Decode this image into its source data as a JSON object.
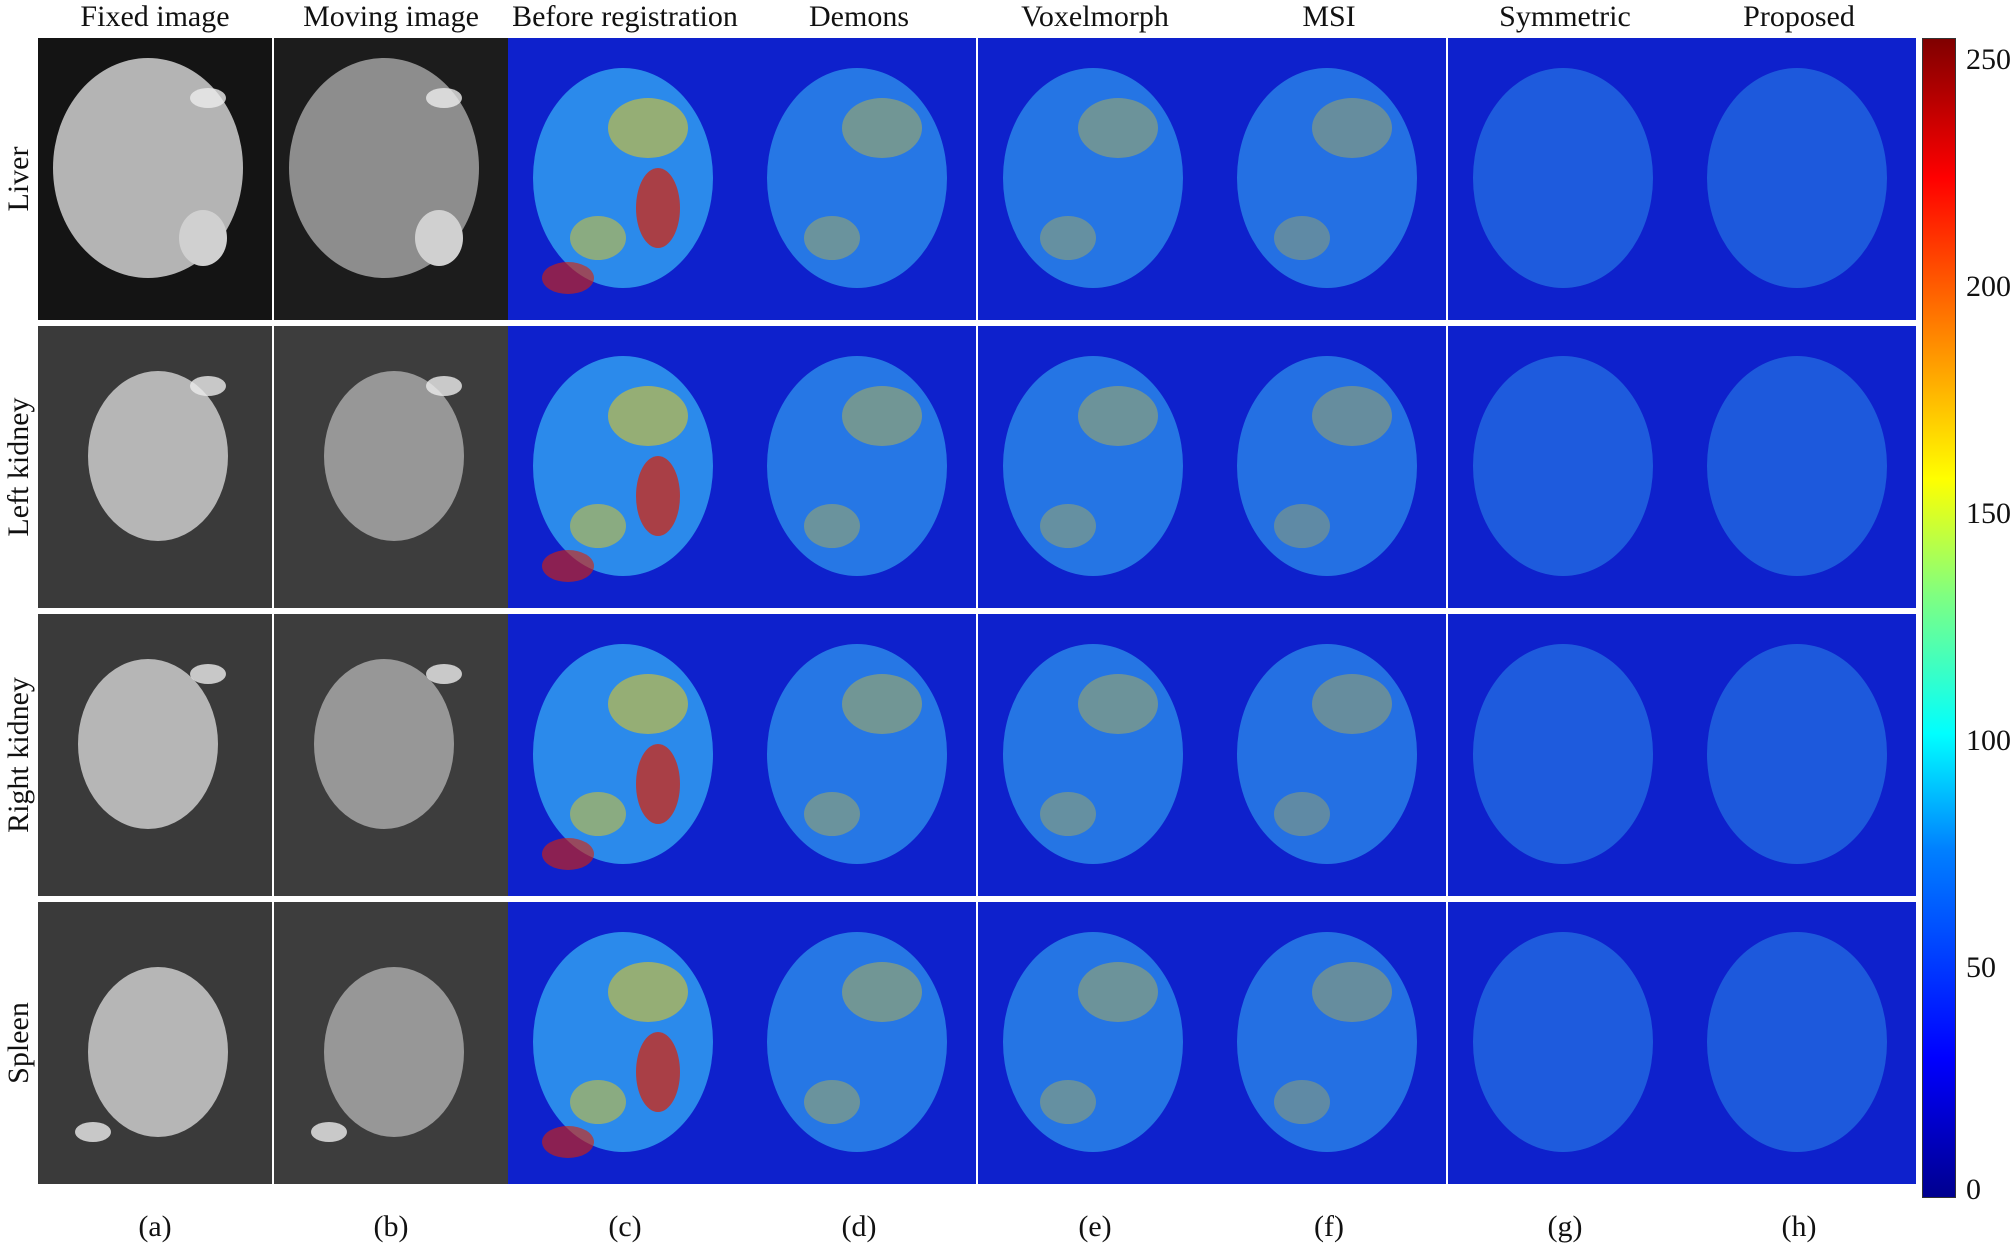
{
  "columns": [
    "Fixed image",
    "Moving image",
    "Before registration",
    "Demons",
    "Voxelmorph",
    "MSI",
    "Symmetric",
    "Proposed"
  ],
  "rows": [
    "Liver",
    "Left kidney",
    "Right kidney",
    "Spleen"
  ],
  "captions": [
    "(a)",
    "(b)",
    "(c)",
    "(d)",
    "(e)",
    "(f)",
    "(g)",
    "(h)"
  ],
  "colorbar": {
    "ticks": [
      "250",
      "200",
      "150",
      "100",
      "50",
      "0"
    ],
    "range": [
      0,
      255
    ],
    "colors": [
      "#00008f",
      "#0000ff",
      "#00ffff",
      "#ffff00",
      "#ff0000",
      "#800000"
    ]
  },
  "panel_style": {
    "ct_background": "#1a1a1a",
    "ct_organ": "#bdbdbd",
    "diff_background": "#00008f",
    "diff_low": "#1a3cff",
    "diff_mid": "#3fd0ff",
    "diff_high": "#ffd200",
    "diff_peak": "#e02000"
  }
}
